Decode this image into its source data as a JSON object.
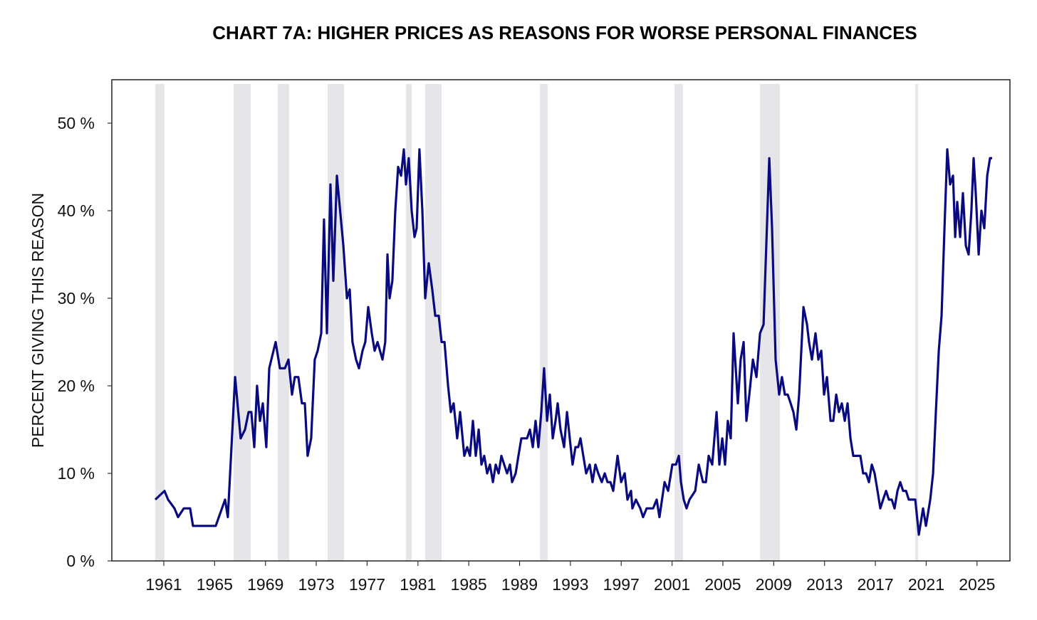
{
  "chart_data": {
    "type": "line",
    "title": "CHART 7A: HIGHER PRICES AS REASONS FOR WORSE PERSONAL FINANCES",
    "xlabel": "",
    "ylabel": "PERCENT GIVING THIS REASON",
    "xlim": [
      1956.91,
      2027.59
    ],
    "ylim": [
      0,
      55
    ],
    "x_ticks": [
      1961,
      1965,
      1969,
      1973,
      1977,
      1981,
      1985,
      1989,
      1993,
      1997,
      2001,
      2005,
      2009,
      2013,
      2017,
      2021,
      2025
    ],
    "x_tick_labels": [
      "1961",
      "1965",
      "1969",
      "1973",
      "1977",
      "1981",
      "1985",
      "1989",
      "1993",
      "1997",
      "2001",
      "2005",
      "2009",
      "2013",
      "2017",
      "2021",
      "2025"
    ],
    "y_ticks": [
      0,
      10,
      20,
      30,
      40,
      50
    ],
    "y_tick_labels": [
      "0 %",
      "10 %",
      "20 %",
      "30 %",
      "40 %",
      "50 %"
    ],
    "grid": false,
    "legend": "none",
    "colors": {
      "line": "#0a0a80",
      "recession": "#e6e6ea",
      "axis": "#333333"
    },
    "recessions": [
      [
        1960.33,
        1961.06
      ],
      [
        1966.49,
        1967.84
      ],
      [
        1969.97,
        1970.87
      ],
      [
        1973.89,
        1975.18
      ],
      [
        1980.06,
        1980.51
      ],
      [
        1981.57,
        1982.86
      ],
      [
        1990.6,
        1991.21
      ],
      [
        2001.19,
        2001.86
      ],
      [
        2007.92,
        2009.49
      ],
      [
        2020.14,
        2020.36
      ]
    ],
    "series": [
      {
        "name": "Higher prices",
        "x": [
          1960.33,
          1961.06,
          1961.34,
          1961.84,
          1962.12,
          1962.57,
          1963.07,
          1963.3,
          1965.09,
          1965.82,
          1966.04,
          1966.61,
          1967.05,
          1967.39,
          1967.67,
          1967.89,
          1968.12,
          1968.34,
          1968.57,
          1968.79,
          1969.07,
          1969.3,
          1969.8,
          1970.14,
          1970.53,
          1970.81,
          1971.09,
          1971.31,
          1971.59,
          1971.87,
          1972.1,
          1972.32,
          1972.6,
          1972.88,
          1973.11,
          1973.39,
          1973.61,
          1973.84,
          1974.12,
          1974.34,
          1974.62,
          1975.13,
          1975.41,
          1975.63,
          1975.85,
          1976.13,
          1976.36,
          1976.64,
          1976.86,
          1977.09,
          1977.37,
          1977.59,
          1977.82,
          1978.21,
          1978.43,
          1978.6,
          1978.77,
          1978.99,
          1979.22,
          1979.44,
          1979.67,
          1979.89,
          1980.06,
          1980.28,
          1980.51,
          1980.73,
          1980.9,
          1981.12,
          1981.35,
          1981.57,
          1981.85,
          1982.13,
          1982.36,
          1982.64,
          1982.86,
          1983.09,
          1983.37,
          1983.59,
          1983.81,
          1984.09,
          1984.32,
          1984.65,
          1984.88,
          1985.1,
          1985.33,
          1985.55,
          1985.78,
          1986.0,
          1986.22,
          1986.45,
          1986.67,
          1986.9,
          1987.12,
          1987.35,
          1987.57,
          1987.79,
          1988.02,
          1988.24,
          1988.41,
          1988.69,
          1988.91,
          1989.14,
          1989.59,
          1989.81,
          1990.04,
          1990.26,
          1990.48,
          1990.71,
          1990.93,
          1991.16,
          1991.38,
          1991.61,
          1991.83,
          1992.0,
          1992.22,
          1992.5,
          1992.73,
          1992.95,
          1993.17,
          1993.4,
          1993.62,
          1993.79,
          1994.24,
          1994.52,
          1994.74,
          1994.97,
          1995.19,
          1995.47,
          1995.7,
          1995.92,
          1996.15,
          1996.37,
          1996.71,
          1996.99,
          1997.27,
          1997.49,
          1997.77,
          1997.88,
          1998.16,
          1998.5,
          1998.72,
          1999.0,
          1999.51,
          1999.79,
          2000.01,
          2000.41,
          2000.69,
          2001.02,
          2001.3,
          2001.53,
          2001.7,
          2001.92,
          2002.14,
          2002.37,
          2002.82,
          2003.1,
          2003.43,
          2003.66,
          2003.88,
          2004.16,
          2004.5,
          2004.72,
          2004.95,
          2005.17,
          2005.39,
          2005.62,
          2005.84,
          2006.18,
          2006.4,
          2006.63,
          2006.85,
          2007.08,
          2007.36,
          2007.64,
          2007.92,
          2008.2,
          2008.65,
          2008.87,
          2009.15,
          2009.43,
          2009.65,
          2009.88,
          2010.1,
          2010.33,
          2010.55,
          2010.78,
          2011.0,
          2011.34,
          2011.62,
          2011.78,
          2012.01,
          2012.29,
          2012.51,
          2012.74,
          2012.96,
          2013.19,
          2013.47,
          2013.69,
          2013.92,
          2014.14,
          2014.36,
          2014.59,
          2014.81,
          2015.04,
          2015.26,
          2015.82,
          2016.04,
          2016.27,
          2016.49,
          2016.72,
          2016.94,
          2017.17,
          2017.39,
          2017.61,
          2017.84,
          2018.06,
          2018.29,
          2018.51,
          2018.74,
          2018.96,
          2019.18,
          2019.41,
          2019.63,
          2019.86,
          2020.14,
          2020.42,
          2020.75,
          2020.98,
          2021.32,
          2021.54,
          2021.76,
          2021.99,
          2022.21,
          2022.44,
          2022.66,
          2022.88,
          2023.11,
          2023.28,
          2023.44,
          2023.67,
          2023.89,
          2024.12,
          2024.34,
          2024.56,
          2024.73,
          2024.9,
          2025.13,
          2025.35,
          2025.57,
          2025.8,
          2026.02,
          2026.19
        ],
        "y": [
          7,
          8,
          7,
          6,
          5,
          6,
          6,
          4,
          4,
          7,
          5,
          21,
          14,
          15,
          17,
          17,
          13,
          20,
          16,
          18,
          13,
          22,
          25,
          22,
          22,
          23,
          19,
          21,
          21,
          18,
          18,
          12,
          14,
          23,
          24,
          26,
          39,
          26,
          43,
          32,
          44,
          36,
          30,
          31,
          25,
          23,
          22,
          24,
          25,
          29,
          26,
          24,
          25,
          23,
          25,
          35,
          30,
          32,
          40,
          45,
          44,
          47,
          43,
          46,
          40,
          37,
          38,
          47,
          40,
          30,
          34,
          31,
          28,
          28,
          25,
          25,
          20,
          17,
          18,
          14,
          17,
          12,
          13,
          12,
          16,
          12,
          15,
          11,
          12,
          10,
          11,
          9,
          11,
          10,
          12,
          11,
          10,
          11,
          9,
          10,
          12,
          14,
          14,
          15,
          13,
          16,
          13,
          17,
          22,
          16,
          19,
          14,
          16,
          18,
          15,
          13,
          17,
          14,
          11,
          13,
          13,
          14,
          10,
          11,
          9,
          11,
          10,
          9,
          10,
          9,
          9,
          8,
          12,
          9,
          10,
          7,
          8,
          6,
          7,
          6,
          5,
          6,
          6,
          7,
          5,
          9,
          8,
          11,
          11,
          12,
          9,
          7,
          6,
          7,
          8,
          11,
          9,
          9,
          12,
          11,
          17,
          11,
          14,
          11,
          16,
          14,
          26,
          18,
          23,
          25,
          16,
          19,
          23,
          21,
          26,
          27,
          46,
          38,
          23,
          19,
          21,
          19,
          19,
          18,
          17,
          15,
          19,
          29,
          27,
          25,
          23,
          26,
          23,
          24,
          19,
          21,
          16,
          16,
          19,
          17,
          18,
          16,
          18,
          14,
          12,
          12,
          10,
          10,
          9,
          11,
          10,
          8,
          6,
          7,
          8,
          7,
          7,
          6,
          8,
          9,
          8,
          8,
          7,
          7,
          7,
          3,
          6,
          4,
          7,
          10,
          17,
          24,
          28,
          38,
          47,
          43,
          44,
          37,
          41,
          37,
          42,
          36,
          35,
          40,
          46,
          42,
          35,
          40,
          38,
          44,
          46,
          46
        ]
      }
    ]
  }
}
